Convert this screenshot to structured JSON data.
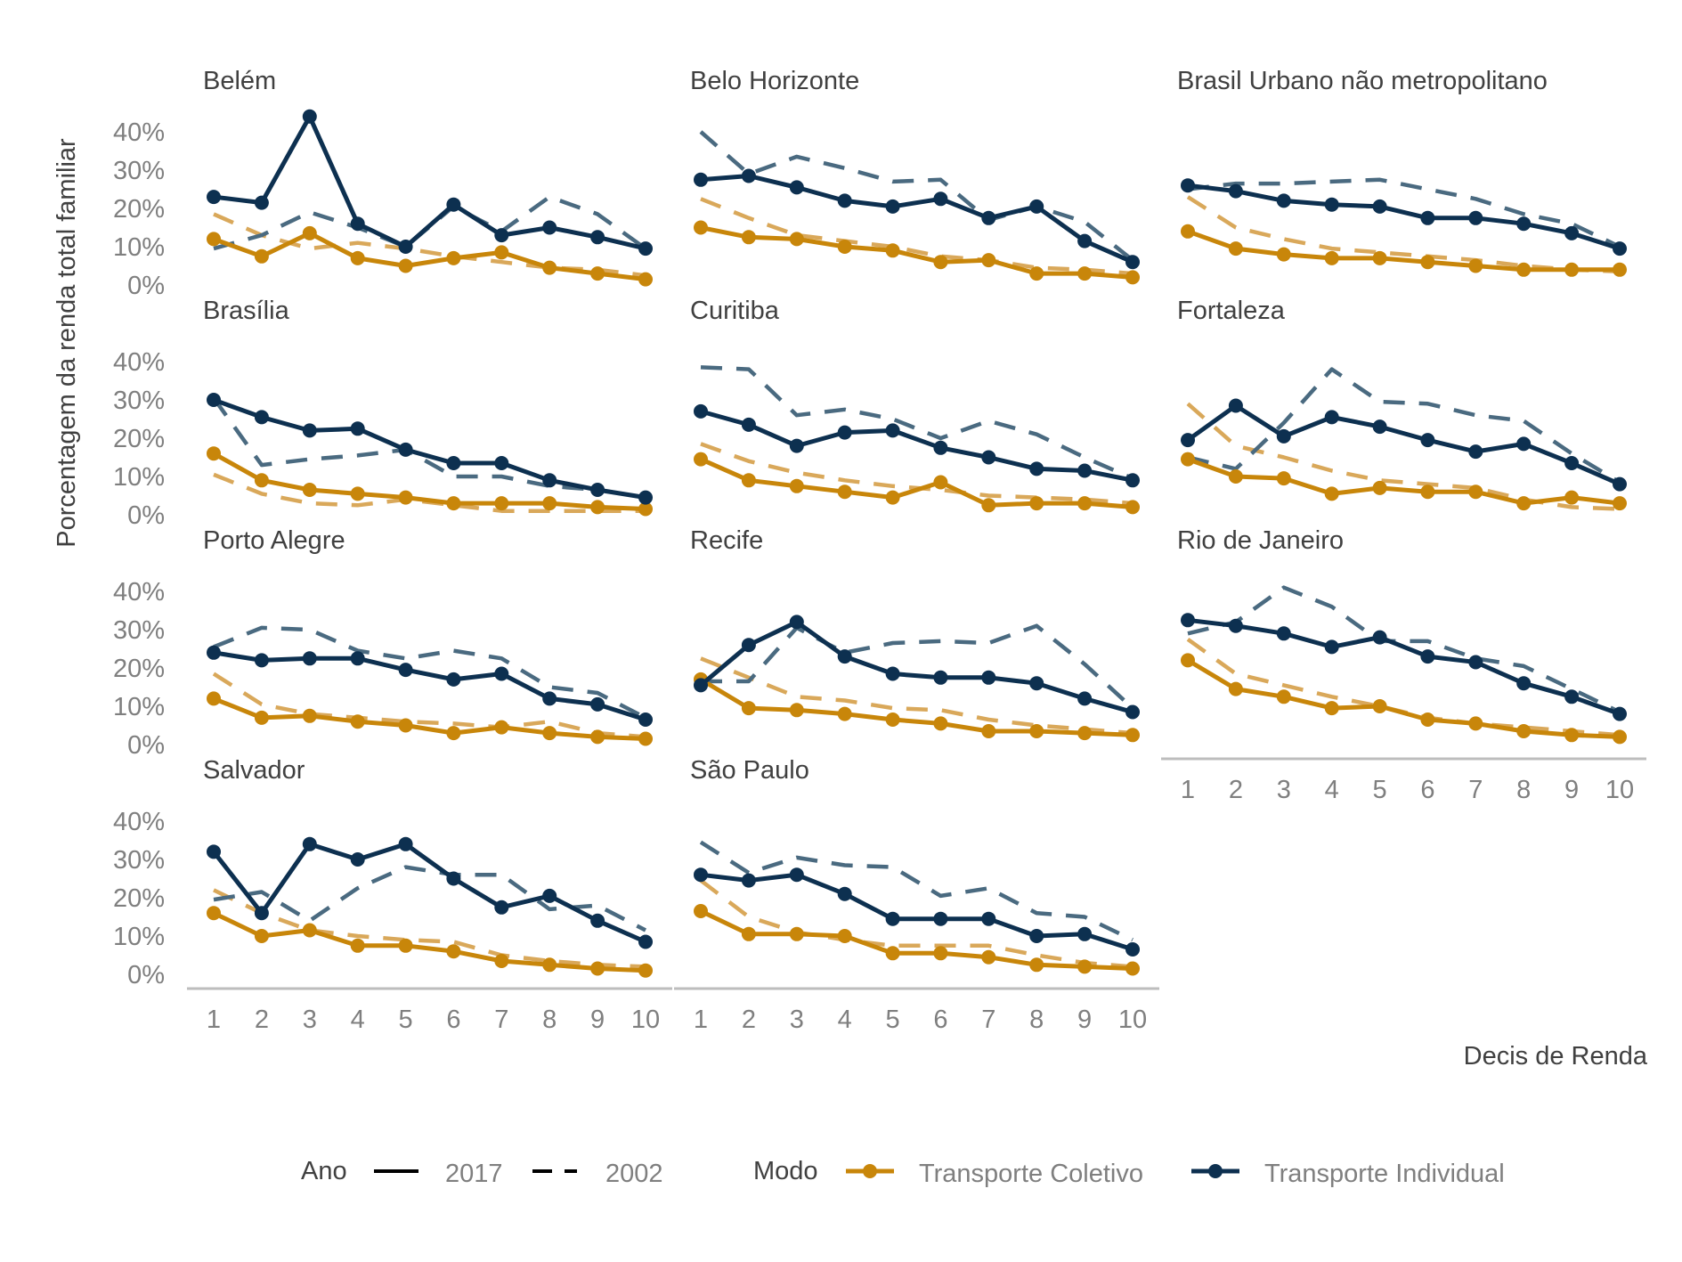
{
  "chart_data": {
    "type": "line",
    "ylabel": "Porcentagem da renda total familiar",
    "xlabel": "Decis de Renda",
    "x": [
      1,
      2,
      3,
      4,
      5,
      6,
      7,
      8,
      9,
      10
    ],
    "x_ticks": [
      "1",
      "2",
      "3",
      "4",
      "5",
      "6",
      "7",
      "8",
      "9",
      "10"
    ],
    "y_ticks": [
      "0%",
      "10%",
      "20%",
      "30%",
      "40%"
    ],
    "ylim": [
      0,
      0.44
    ],
    "grid": false,
    "legend": {
      "placement": "bottom",
      "ano_title": "Ano",
      "ano_entries": [
        "2017",
        "2002"
      ],
      "modo_title": "Modo",
      "modo_entries": [
        "Transporte Coletivo",
        "Transporte Individual"
      ]
    },
    "colors": {
      "coletivo": "#C8860A",
      "coletivo_2002": "#D9A85A",
      "individual": "#0D3050",
      "individual_2002": "#4A6A80",
      "axis": "#BDBDBD",
      "text_dark": "#404040",
      "text_light": "#7F7F7F"
    },
    "panels": [
      {
        "title": "Belém",
        "coletivo_2017": [
          0.12,
          0.075,
          0.135,
          0.07,
          0.05,
          0.07,
          0.085,
          0.045,
          0.03,
          0.015
        ],
        "coletivo_2002": [
          0.185,
          0.13,
          0.095,
          0.11,
          0.095,
          0.075,
          0.06,
          0.045,
          0.04,
          0.025
        ],
        "individual_2017": [
          0.23,
          0.215,
          0.44,
          0.16,
          0.1,
          0.21,
          0.13,
          0.15,
          0.125,
          0.095
        ],
        "individual_2002": [
          0.095,
          0.13,
          0.19,
          0.15,
          0.1,
          0.205,
          0.14,
          0.23,
          0.185,
          0.095
        ]
      },
      {
        "title": "Belo Horizonte",
        "coletivo_2017": [
          0.15,
          0.125,
          0.12,
          0.1,
          0.09,
          0.06,
          0.065,
          0.03,
          0.03,
          0.02
        ],
        "coletivo_2002": [
          0.225,
          0.175,
          0.13,
          0.115,
          0.1,
          0.075,
          0.065,
          0.045,
          0.04,
          0.03
        ],
        "individual_2017": [
          0.275,
          0.285,
          0.255,
          0.22,
          0.205,
          0.225,
          0.175,
          0.205,
          0.115,
          0.06
        ],
        "individual_2002": [
          0.4,
          0.29,
          0.335,
          0.305,
          0.27,
          0.275,
          0.17,
          0.205,
          0.165,
          0.065
        ]
      },
      {
        "title": "Brasil Urbano não metropolitano",
        "coletivo_2017": [
          0.14,
          0.095,
          0.08,
          0.07,
          0.07,
          0.06,
          0.05,
          0.04,
          0.04,
          0.04
        ],
        "coletivo_2002": [
          0.23,
          0.15,
          0.12,
          0.095,
          0.085,
          0.075,
          0.065,
          0.05,
          0.04,
          0.035
        ],
        "individual_2017": [
          0.26,
          0.245,
          0.22,
          0.21,
          0.205,
          0.175,
          0.175,
          0.16,
          0.135,
          0.095
        ],
        "individual_2002": [
          0.25,
          0.265,
          0.265,
          0.27,
          0.275,
          0.25,
          0.225,
          0.185,
          0.16,
          0.1
        ]
      },
      {
        "title": "Brasília",
        "coletivo_2017": [
          0.16,
          0.09,
          0.065,
          0.055,
          0.045,
          0.03,
          0.03,
          0.03,
          0.02,
          0.015
        ],
        "coletivo_2002": [
          0.105,
          0.055,
          0.03,
          0.025,
          0.04,
          0.025,
          0.01,
          0.01,
          0.01,
          0.01
        ],
        "individual_2017": [
          0.3,
          0.255,
          0.22,
          0.225,
          0.17,
          0.135,
          0.135,
          0.09,
          0.065,
          0.045
        ],
        "individual_2002": [
          0.305,
          0.13,
          0.145,
          0.155,
          0.17,
          0.1,
          0.1,
          0.075,
          0.065,
          0.045
        ]
      },
      {
        "title": "Curitiba",
        "coletivo_2017": [
          0.145,
          0.09,
          0.075,
          0.06,
          0.045,
          0.085,
          0.025,
          0.03,
          0.03,
          0.02
        ],
        "coletivo_2002": [
          0.185,
          0.14,
          0.11,
          0.09,
          0.075,
          0.065,
          0.05,
          0.045,
          0.04,
          0.03
        ],
        "individual_2017": [
          0.27,
          0.235,
          0.18,
          0.215,
          0.22,
          0.175,
          0.15,
          0.12,
          0.115,
          0.09
        ],
        "individual_2002": [
          0.385,
          0.38,
          0.26,
          0.275,
          0.25,
          0.2,
          0.245,
          0.21,
          0.15,
          0.095
        ]
      },
      {
        "title": "Fortaleza",
        "coletivo_2017": [
          0.145,
          0.1,
          0.095,
          0.055,
          0.07,
          0.06,
          0.06,
          0.03,
          0.045,
          0.03
        ],
        "coletivo_2002": [
          0.29,
          0.18,
          0.15,
          0.115,
          0.09,
          0.08,
          0.07,
          0.04,
          0.02,
          0.015
        ],
        "individual_2017": [
          0.195,
          0.285,
          0.205,
          0.255,
          0.23,
          0.195,
          0.165,
          0.185,
          0.135,
          0.08
        ],
        "individual_2002": [
          0.15,
          0.12,
          0.24,
          0.38,
          0.295,
          0.29,
          0.26,
          0.245,
          0.16,
          0.085
        ]
      },
      {
        "title": "Porto Alegre",
        "coletivo_2017": [
          0.12,
          0.07,
          0.075,
          0.06,
          0.05,
          0.03,
          0.045,
          0.03,
          0.02,
          0.015
        ],
        "coletivo_2002": [
          0.185,
          0.105,
          0.08,
          0.07,
          0.06,
          0.055,
          0.045,
          0.06,
          0.03,
          0.02
        ],
        "individual_2017": [
          0.24,
          0.22,
          0.225,
          0.225,
          0.195,
          0.17,
          0.185,
          0.12,
          0.105,
          0.065
        ],
        "individual_2002": [
          0.255,
          0.305,
          0.3,
          0.245,
          0.225,
          0.245,
          0.225,
          0.15,
          0.135,
          0.07
        ]
      },
      {
        "title": "Recife",
        "coletivo_2017": [
          0.17,
          0.095,
          0.09,
          0.08,
          0.065,
          0.055,
          0.035,
          0.035,
          0.03,
          0.025
        ],
        "coletivo_2002": [
          0.225,
          0.175,
          0.125,
          0.115,
          0.095,
          0.09,
          0.065,
          0.05,
          0.04,
          0.03
        ],
        "individual_2017": [
          0.155,
          0.26,
          0.32,
          0.23,
          0.185,
          0.175,
          0.175,
          0.16,
          0.12,
          0.085
        ],
        "individual_2002": [
          0.165,
          0.165,
          0.305,
          0.24,
          0.265,
          0.27,
          0.265,
          0.31,
          0.21,
          0.095
        ]
      },
      {
        "title": "Rio de Janeiro",
        "coletivo_2017": [
          0.22,
          0.145,
          0.125,
          0.095,
          0.1,
          0.065,
          0.055,
          0.035,
          0.025,
          0.02
        ],
        "coletivo_2002": [
          0.275,
          0.185,
          0.155,
          0.125,
          0.1,
          0.07,
          0.055,
          0.045,
          0.035,
          0.025
        ],
        "individual_2017": [
          0.325,
          0.31,
          0.29,
          0.255,
          0.28,
          0.23,
          0.215,
          0.16,
          0.125,
          0.08
        ],
        "individual_2002": [
          0.29,
          0.32,
          0.41,
          0.36,
          0.27,
          0.27,
          0.225,
          0.205,
          0.145,
          0.085
        ]
      },
      {
        "title": "Salvador",
        "coletivo_2017": [
          0.16,
          0.1,
          0.115,
          0.075,
          0.075,
          0.06,
          0.035,
          0.025,
          0.015,
          0.01
        ],
        "coletivo_2002": [
          0.22,
          0.16,
          0.115,
          0.1,
          0.09,
          0.085,
          0.05,
          0.035,
          0.025,
          0.02
        ],
        "individual_2017": [
          0.32,
          0.16,
          0.34,
          0.3,
          0.34,
          0.25,
          0.175,
          0.205,
          0.14,
          0.085
        ],
        "individual_2002": [
          0.195,
          0.215,
          0.14,
          0.225,
          0.28,
          0.26,
          0.26,
          0.17,
          0.18,
          0.115
        ]
      },
      {
        "title": "São Paulo",
        "coletivo_2017": [
          0.165,
          0.105,
          0.105,
          0.1,
          0.055,
          0.055,
          0.045,
          0.025,
          0.02,
          0.015
        ],
        "coletivo_2002": [
          0.245,
          0.15,
          0.11,
          0.09,
          0.075,
          0.075,
          0.075,
          0.05,
          0.03,
          0.02
        ],
        "individual_2017": [
          0.26,
          0.245,
          0.26,
          0.21,
          0.145,
          0.145,
          0.145,
          0.1,
          0.105,
          0.065
        ],
        "individual_2002": [
          0.345,
          0.265,
          0.305,
          0.285,
          0.28,
          0.205,
          0.225,
          0.16,
          0.15,
          0.09
        ]
      }
    ]
  }
}
